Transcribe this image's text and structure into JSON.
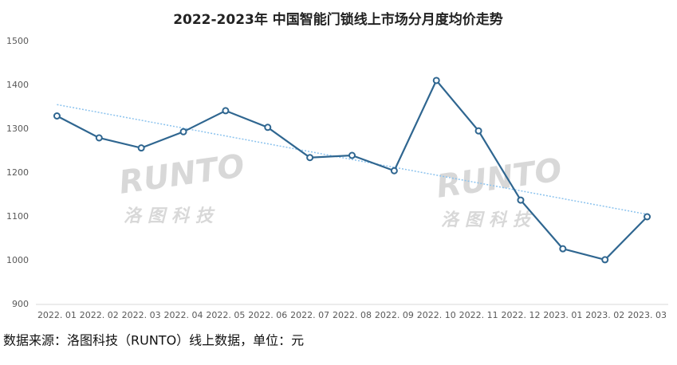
{
  "chart_data": {
    "type": "line",
    "title": "2022-2023年 中国智能门锁线上市场分月度均价走势",
    "categories": [
      "2022. 01",
      "2022. 02",
      "2022. 03",
      "2022. 04",
      "2022. 05",
      "2022. 06",
      "2022. 07",
      "2022. 08",
      "2022. 09",
      "2022. 10",
      "2022. 11",
      "2022. 12",
      "2023. 01",
      "2023. 02",
      "2023. 03"
    ],
    "series": [
      {
        "values": [
          1330,
          1280,
          1257,
          1294,
          1342,
          1304,
          1235,
          1240,
          1205,
          1411,
          1296,
          1138,
          1027,
          1002,
          1100
        ],
        "color": "#2f6690"
      }
    ],
    "trendline": true,
    "trendline_color": "#8cc3ee",
    "ylim": [
      900,
      1500
    ],
    "yticks": [
      900,
      1000,
      1100,
      1200,
      1300,
      1400,
      1500
    ],
    "grid": false,
    "watermark": [
      "RUNTO",
      "洛图科技"
    ],
    "source": "数据来源：洛图科技（RUNTO）线上数据，单位：元"
  }
}
